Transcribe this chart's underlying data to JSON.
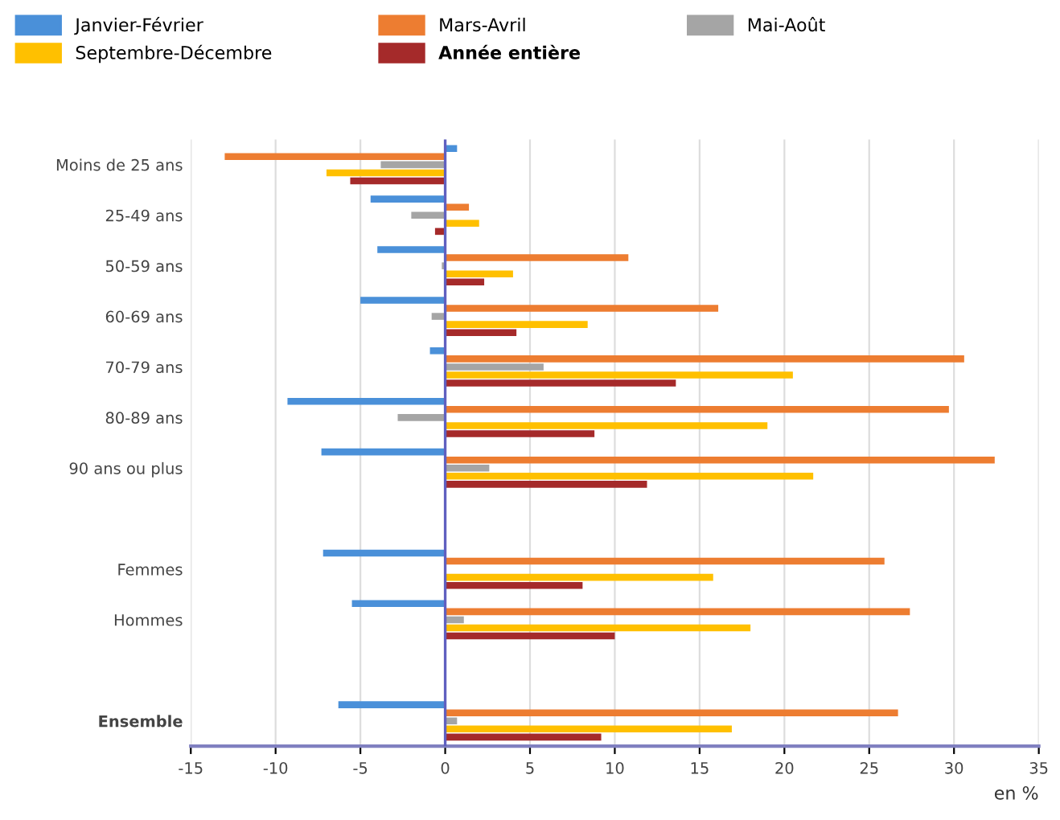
{
  "chart_data": {
    "type": "bar",
    "orientation": "horizontal",
    "xlabel": "en %",
    "categories": [
      "Moins de 25 ans",
      "25-49 ans",
      "50-59 ans",
      "60-69 ans",
      "70-79 ans",
      "80-89 ans",
      "90 ans ou plus",
      null,
      "Femmes",
      "Hommes",
      null,
      "Ensemble"
    ],
    "series": [
      {
        "name": "Janvier-Février",
        "color": "#4a90d9",
        "values": [
          0.7,
          -4.4,
          -4.0,
          -5.0,
          -0.9,
          -9.3,
          -7.3,
          null,
          -7.2,
          -5.5,
          null,
          -6.3
        ]
      },
      {
        "name": "Mars-Avril",
        "color": "#ed7d31",
        "values": [
          -13.0,
          1.4,
          10.8,
          16.1,
          30.6,
          29.7,
          32.4,
          null,
          25.9,
          27.4,
          null,
          26.7
        ]
      },
      {
        "name": "Mai-Août",
        "color": "#a5a5a5",
        "values": [
          -3.8,
          -2.0,
          -0.2,
          -0.8,
          5.8,
          -2.8,
          2.6,
          null,
          0,
          1.1,
          null,
          0.7
        ]
      },
      {
        "name": "Septembre-Décembre",
        "color": "#ffc000",
        "values": [
          -7.0,
          2.0,
          4.0,
          8.4,
          20.5,
          19.0,
          21.7,
          null,
          15.8,
          18.0,
          null,
          16.9
        ]
      },
      {
        "name": "Année entière",
        "color": "#a52a2a",
        "values": [
          -5.6,
          -0.6,
          2.3,
          4.2,
          13.6,
          8.8,
          11.9,
          null,
          8.1,
          10.0,
          null,
          9.2
        ]
      }
    ],
    "xlim": [
      -15,
      35
    ],
    "xticks": [
      -15,
      -10,
      -5,
      0,
      5,
      10,
      15,
      20,
      25,
      30,
      35
    ],
    "grid": "x",
    "legend": "top",
    "ref_lines": [
      {
        "axis": "x",
        "value": 0,
        "color": "#6060c0"
      }
    ]
  }
}
